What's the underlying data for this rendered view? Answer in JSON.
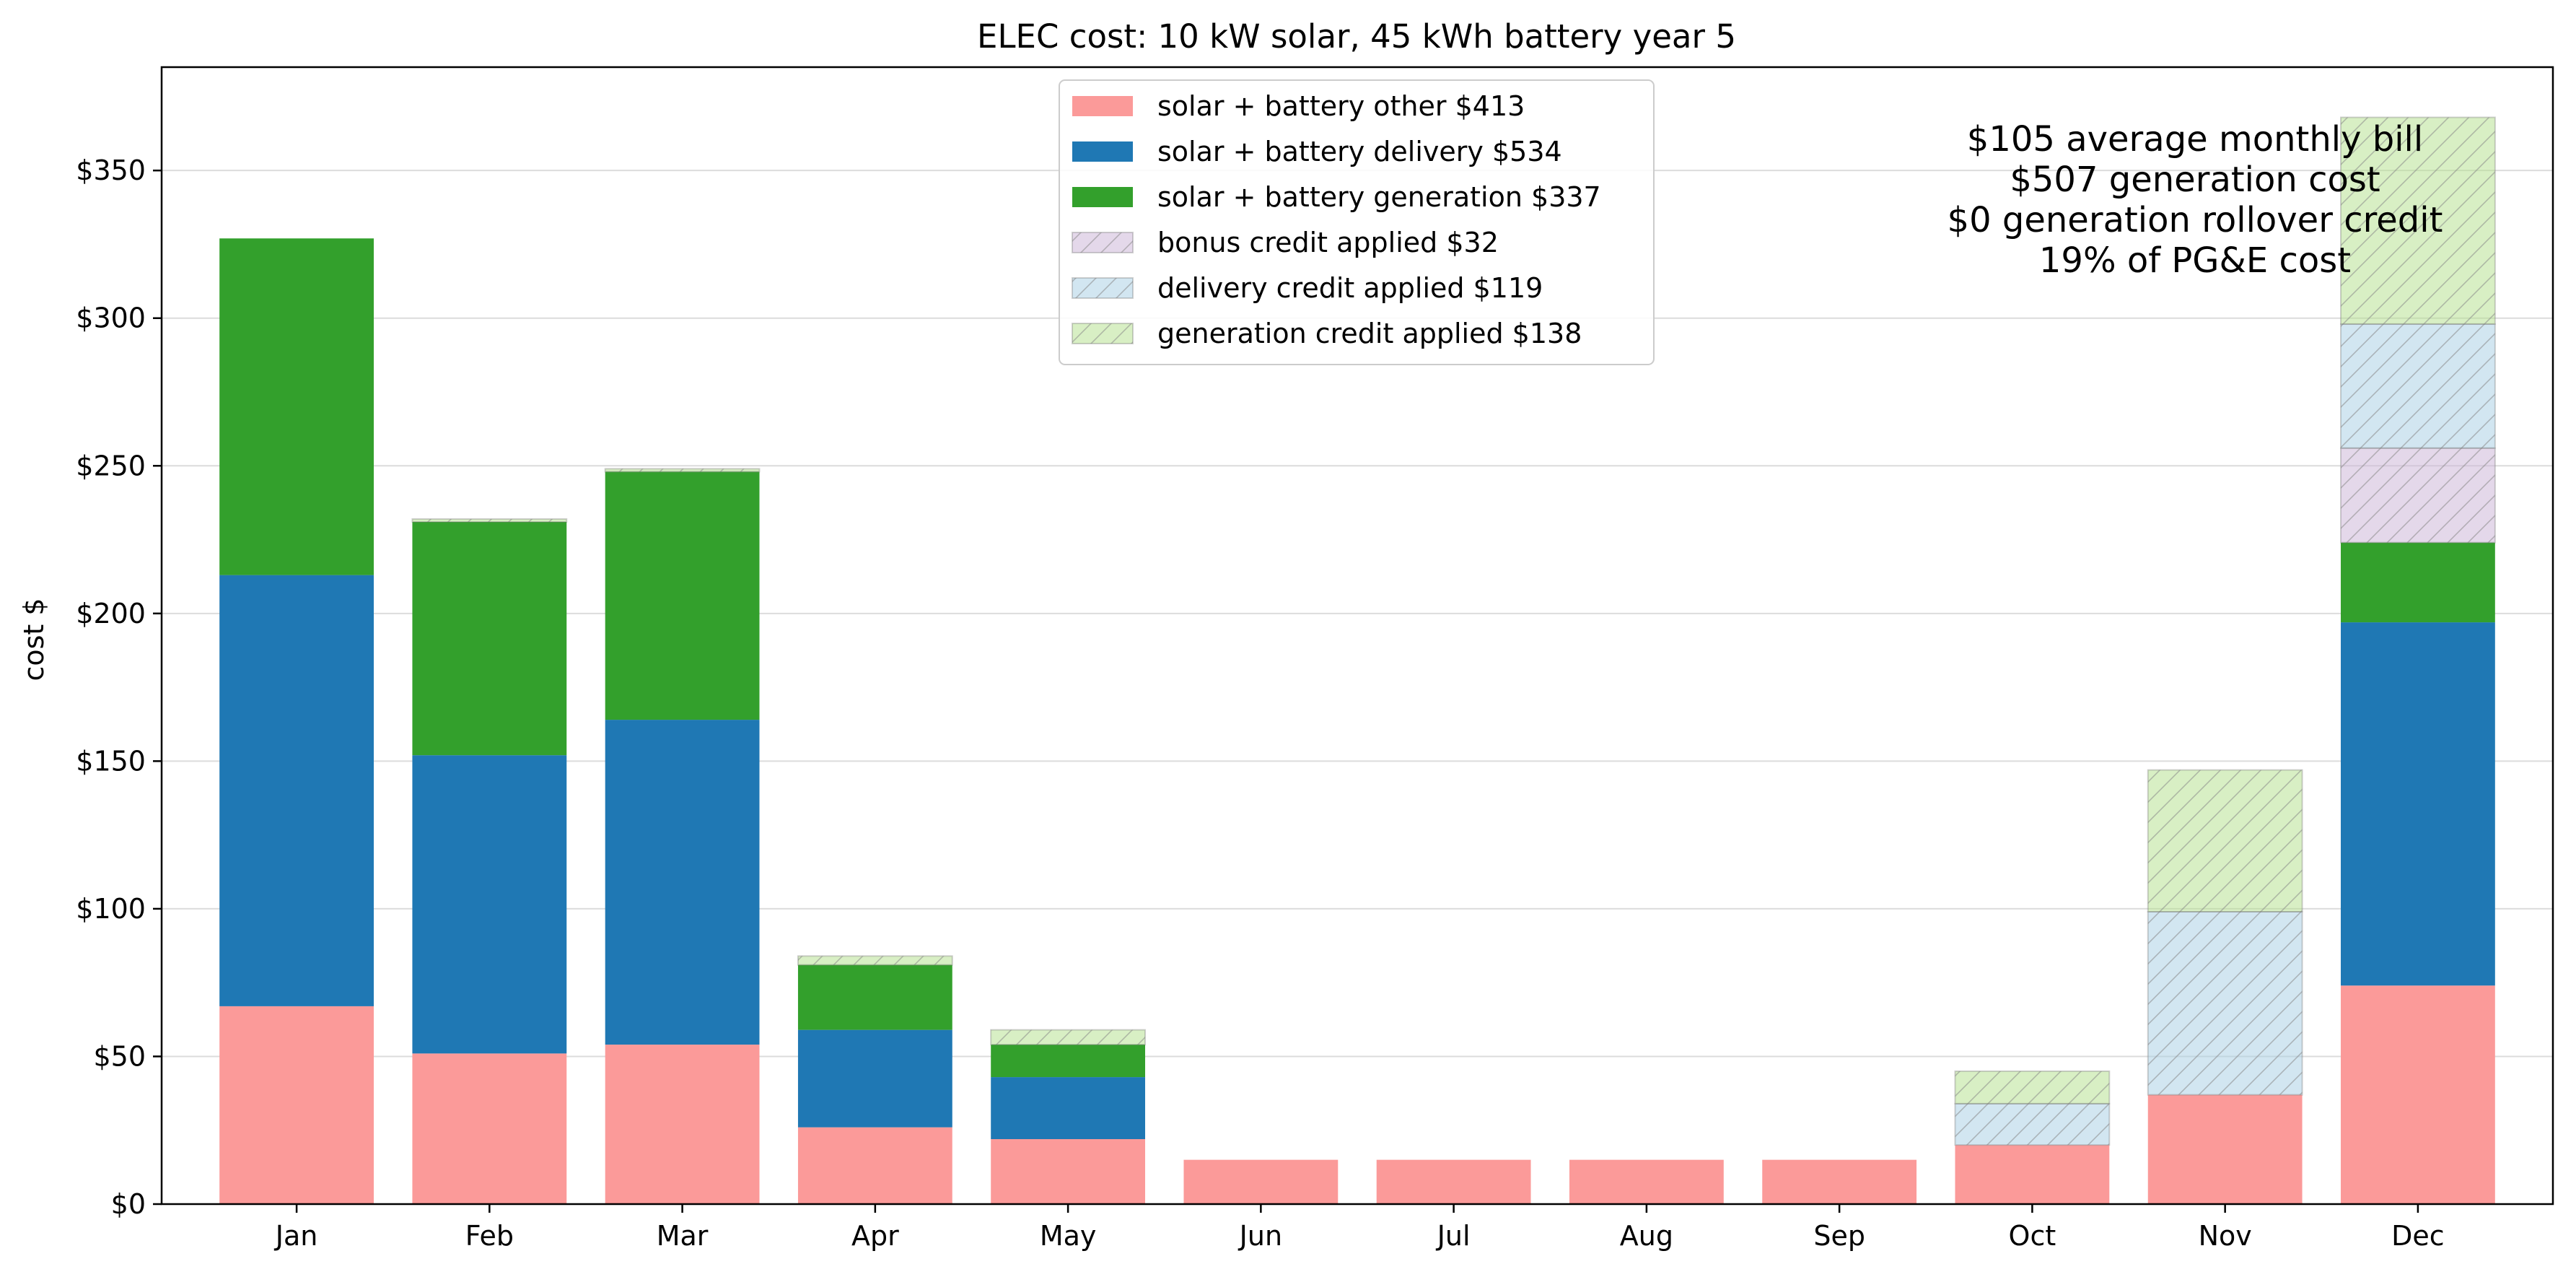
{
  "chart_data": {
    "type": "bar",
    "stacked": true,
    "title": "ELEC cost: 10 kW solar, 45 kWh battery year 5",
    "xlabel": "",
    "ylabel": "cost $",
    "ylim": [
      0,
      385
    ],
    "yticks": [
      0,
      50,
      100,
      150,
      200,
      250,
      300,
      350
    ],
    "ytick_labels": [
      "$0",
      "$50",
      "$100",
      "$150",
      "$200",
      "$250",
      "$300",
      "$350"
    ],
    "grid": "horizontal",
    "legend_position": "top-center",
    "categories": [
      "Jan",
      "Feb",
      "Mar",
      "Apr",
      "May",
      "Jun",
      "Jul",
      "Aug",
      "Sep",
      "Oct",
      "Nov",
      "Dec"
    ],
    "series": [
      {
        "name": "solar + battery other $413",
        "color": "#fb9a99",
        "hatched": false,
        "values": [
          67,
          51,
          54,
          26,
          22,
          15,
          15,
          15,
          15,
          20,
          37,
          74
        ]
      },
      {
        "name": "solar + battery delivery $534",
        "color": "#1f78b4",
        "hatched": false,
        "values": [
          146,
          101,
          110,
          33,
          21,
          0,
          0,
          0,
          0,
          0,
          0,
          123
        ]
      },
      {
        "name": "solar + battery generation $337",
        "color": "#33a02c",
        "hatched": false,
        "values": [
          114,
          79,
          84,
          22,
          11,
          0,
          0,
          0,
          0,
          0,
          0,
          27
        ]
      },
      {
        "name": "bonus credit applied $32",
        "color": "#cab2d6",
        "hatched": true,
        "values": [
          0,
          0,
          0,
          0,
          0,
          0,
          0,
          0,
          0,
          0,
          0,
          32
        ]
      },
      {
        "name": "delivery credit applied $119",
        "color": "#a6cee3",
        "hatched": true,
        "values": [
          0,
          0,
          0,
          0,
          0,
          0,
          0,
          0,
          0,
          14,
          62,
          42
        ]
      },
      {
        "name": "generation credit applied $138",
        "color": "#b2df8a",
        "hatched": true,
        "values": [
          0,
          1,
          1,
          3,
          5,
          0,
          0,
          0,
          0,
          11,
          48,
          70
        ]
      }
    ],
    "annotations": [
      "$105 average monthly bill",
      "$507 generation cost",
      "$0 generation rollover credit",
      "19% of PG&E cost"
    ]
  }
}
